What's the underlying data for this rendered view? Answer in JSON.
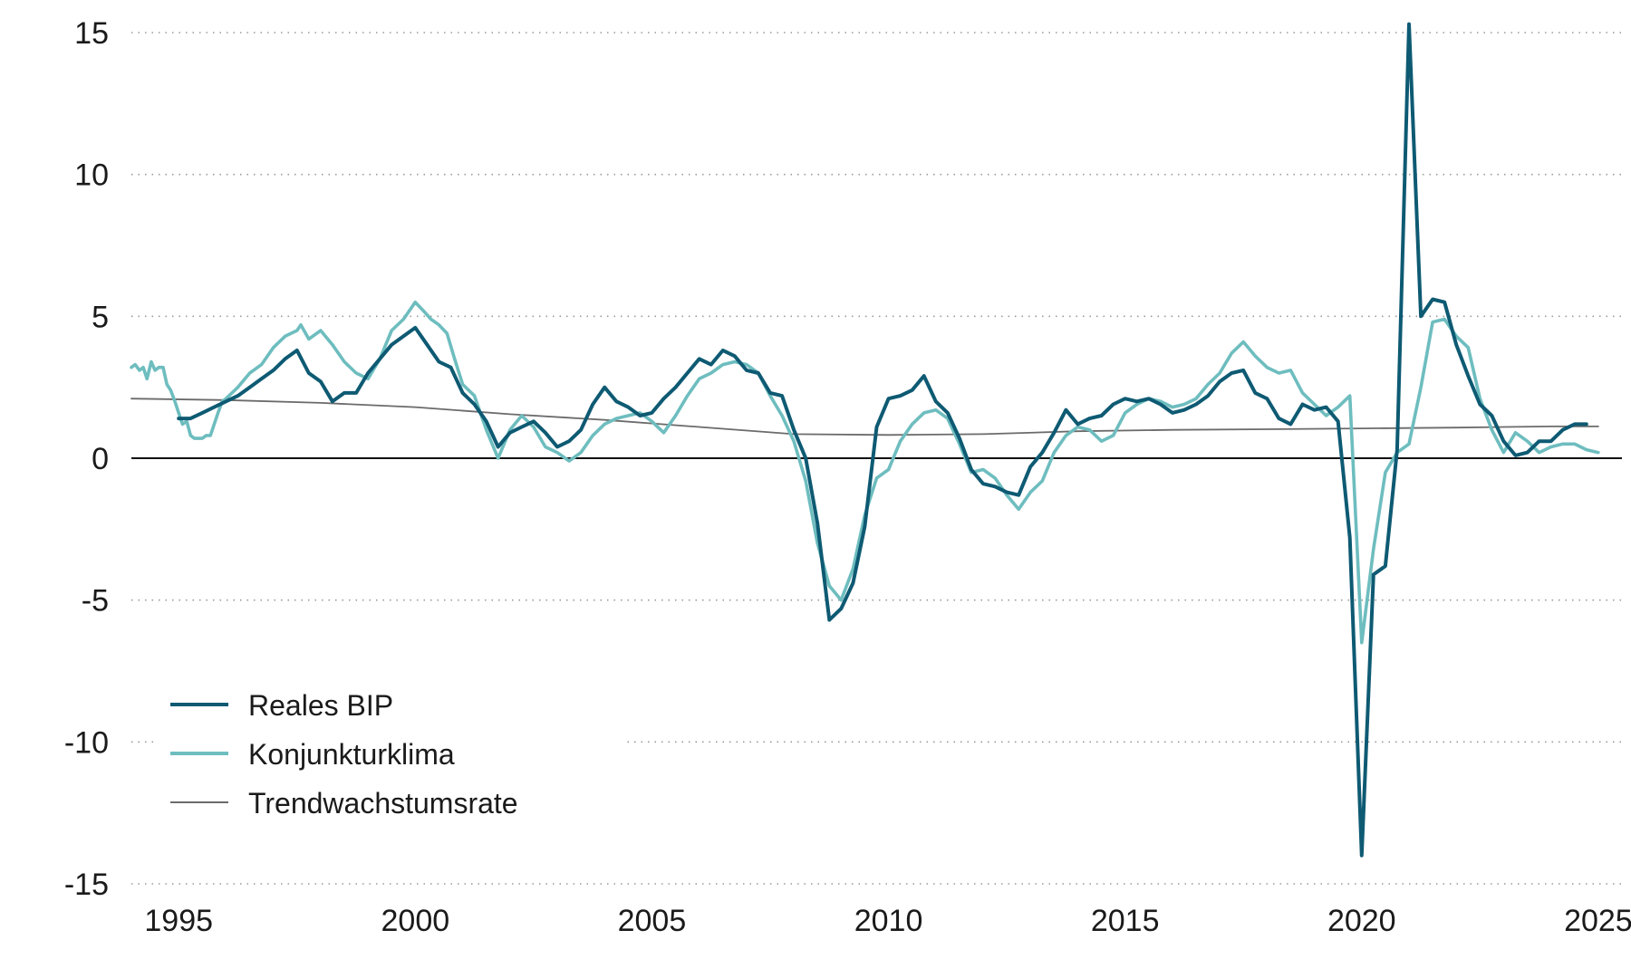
{
  "chart_data": {
    "type": "line",
    "title": "",
    "xlabel": "",
    "ylabel": "",
    "xlim": [
      1994.0,
      2025.5
    ],
    "ylim": [
      -15,
      15
    ],
    "y_ticks": [
      15,
      10,
      5,
      0,
      -5,
      -10,
      -15
    ],
    "y_tick_labels": [
      "15",
      "10",
      "5",
      "0",
      "-5",
      "-10",
      "-15"
    ],
    "x_ticks": [
      1995,
      2000,
      2005,
      2010,
      2015,
      2020,
      2025
    ],
    "x_tick_labels": [
      "1995",
      "2000",
      "2005",
      "2010",
      "2015",
      "2020",
      "2025"
    ],
    "grid": "horizontal dotted",
    "zero_line": true,
    "legend_position": "bottom-left",
    "series": [
      {
        "name": "Reales BIP",
        "color": "#0e5a73",
        "points": [
          [
            1995.0,
            1.4
          ],
          [
            1995.25,
            1.4
          ],
          [
            1995.5,
            1.6
          ],
          [
            1995.75,
            1.8
          ],
          [
            1996.0,
            2.0
          ],
          [
            1996.25,
            2.2
          ],
          [
            1996.5,
            2.5
          ],
          [
            1996.75,
            2.8
          ],
          [
            1997.0,
            3.1
          ],
          [
            1997.25,
            3.5
          ],
          [
            1997.5,
            3.8
          ],
          [
            1997.75,
            3.0
          ],
          [
            1998.0,
            2.7
          ],
          [
            1998.25,
            2.0
          ],
          [
            1998.5,
            2.3
          ],
          [
            1998.75,
            2.3
          ],
          [
            1999.0,
            3.0
          ],
          [
            1999.25,
            3.5
          ],
          [
            1999.5,
            4.0
          ],
          [
            1999.75,
            4.3
          ],
          [
            2000.0,
            4.6
          ],
          [
            2000.25,
            4.0
          ],
          [
            2000.5,
            3.4
          ],
          [
            2000.75,
            3.2
          ],
          [
            2001.0,
            2.3
          ],
          [
            2001.25,
            1.9
          ],
          [
            2001.5,
            1.3
          ],
          [
            2001.75,
            0.4
          ],
          [
            2002.0,
            0.9
          ],
          [
            2002.25,
            1.1
          ],
          [
            2002.5,
            1.3
          ],
          [
            2002.75,
            0.9
          ],
          [
            2003.0,
            0.4
          ],
          [
            2003.25,
            0.6
          ],
          [
            2003.5,
            1.0
          ],
          [
            2003.75,
            1.9
          ],
          [
            2004.0,
            2.5
          ],
          [
            2004.25,
            2.0
          ],
          [
            2004.5,
            1.8
          ],
          [
            2004.75,
            1.5
          ],
          [
            2005.0,
            1.6
          ],
          [
            2005.25,
            2.1
          ],
          [
            2005.5,
            2.5
          ],
          [
            2005.75,
            3.0
          ],
          [
            2006.0,
            3.5
          ],
          [
            2006.25,
            3.3
          ],
          [
            2006.5,
            3.8
          ],
          [
            2006.75,
            3.6
          ],
          [
            2007.0,
            3.1
          ],
          [
            2007.25,
            3.0
          ],
          [
            2007.5,
            2.3
          ],
          [
            2007.75,
            2.2
          ],
          [
            2008.0,
            1.0
          ],
          [
            2008.25,
            0.0
          ],
          [
            2008.5,
            -2.3
          ],
          [
            2008.75,
            -5.7
          ],
          [
            2009.0,
            -5.3
          ],
          [
            2009.25,
            -4.4
          ],
          [
            2009.5,
            -2.4
          ],
          [
            2009.75,
            1.1
          ],
          [
            2010.0,
            2.1
          ],
          [
            2010.25,
            2.2
          ],
          [
            2010.5,
            2.4
          ],
          [
            2010.75,
            2.9
          ],
          [
            2011.0,
            2.0
          ],
          [
            2011.25,
            1.6
          ],
          [
            2011.5,
            0.7
          ],
          [
            2011.75,
            -0.4
          ],
          [
            2012.0,
            -0.9
          ],
          [
            2012.25,
            -1.0
          ],
          [
            2012.5,
            -1.2
          ],
          [
            2012.75,
            -1.3
          ],
          [
            2013.0,
            -0.3
          ],
          [
            2013.25,
            0.2
          ],
          [
            2013.5,
            0.9
          ],
          [
            2013.75,
            1.7
          ],
          [
            2014.0,
            1.2
          ],
          [
            2014.25,
            1.4
          ],
          [
            2014.5,
            1.5
          ],
          [
            2014.75,
            1.9
          ],
          [
            2015.0,
            2.1
          ],
          [
            2015.25,
            2.0
          ],
          [
            2015.5,
            2.1
          ],
          [
            2015.75,
            1.9
          ],
          [
            2016.0,
            1.6
          ],
          [
            2016.25,
            1.7
          ],
          [
            2016.5,
            1.9
          ],
          [
            2016.75,
            2.2
          ],
          [
            2017.0,
            2.7
          ],
          [
            2017.25,
            3.0
          ],
          [
            2017.5,
            3.1
          ],
          [
            2017.75,
            2.3
          ],
          [
            2018.0,
            2.1
          ],
          [
            2018.25,
            1.4
          ],
          [
            2018.5,
            1.2
          ],
          [
            2018.75,
            1.9
          ],
          [
            2019.0,
            1.7
          ],
          [
            2019.25,
            1.8
          ],
          [
            2019.5,
            1.3
          ],
          [
            2019.75,
            -2.8
          ],
          [
            2020.0,
            -14.0
          ],
          [
            2020.25,
            -4.1
          ],
          [
            2020.5,
            -3.8
          ],
          [
            2020.75,
            0.3
          ],
          [
            2021.0,
            15.3
          ],
          [
            2021.25,
            5.0
          ],
          [
            2021.5,
            5.6
          ],
          [
            2021.75,
            5.5
          ],
          [
            2022.0,
            4.0
          ],
          [
            2022.25,
            2.9
          ],
          [
            2022.5,
            1.9
          ],
          [
            2022.75,
            1.5
          ],
          [
            2023.0,
            0.6
          ],
          [
            2023.25,
            0.1
          ],
          [
            2023.5,
            0.2
          ],
          [
            2023.75,
            0.6
          ],
          [
            2024.0,
            0.6
          ],
          [
            2024.25,
            1.0
          ],
          [
            2024.5,
            1.2
          ],
          [
            2024.75,
            1.2
          ]
        ]
      },
      {
        "name": "Konjunkturklima",
        "color": "#6ebdbf",
        "points": [
          [
            1994.0,
            3.2
          ],
          [
            1994.08,
            3.3
          ],
          [
            1994.17,
            3.1
          ],
          [
            1994.25,
            3.2
          ],
          [
            1994.33,
            2.8
          ],
          [
            1994.42,
            3.4
          ],
          [
            1994.5,
            3.1
          ],
          [
            1994.58,
            3.2
          ],
          [
            1994.67,
            3.2
          ],
          [
            1994.75,
            2.6
          ],
          [
            1994.83,
            2.4
          ],
          [
            1994.92,
            2.0
          ],
          [
            1995.0,
            1.6
          ],
          [
            1995.08,
            1.2
          ],
          [
            1995.17,
            1.3
          ],
          [
            1995.25,
            0.8
          ],
          [
            1995.33,
            0.7
          ],
          [
            1995.42,
            0.7
          ],
          [
            1995.5,
            0.7
          ],
          [
            1995.58,
            0.8
          ],
          [
            1995.67,
            0.8
          ],
          [
            1995.75,
            1.2
          ],
          [
            1995.83,
            1.6
          ],
          [
            1995.92,
            2.0
          ],
          [
            1996.0,
            2.1
          ],
          [
            1996.25,
            2.5
          ],
          [
            1996.5,
            3.0
          ],
          [
            1996.75,
            3.3
          ],
          [
            1997.0,
            3.9
          ],
          [
            1997.25,
            4.3
          ],
          [
            1997.5,
            4.5
          ],
          [
            1997.58,
            4.7
          ],
          [
            1997.75,
            4.2
          ],
          [
            1998.0,
            4.5
          ],
          [
            1998.25,
            4.0
          ],
          [
            1998.5,
            3.4
          ],
          [
            1998.75,
            3.0
          ],
          [
            1999.0,
            2.8
          ],
          [
            1999.25,
            3.5
          ],
          [
            1999.5,
            4.5
          ],
          [
            1999.75,
            4.9
          ],
          [
            2000.0,
            5.5
          ],
          [
            2000.17,
            5.2
          ],
          [
            2000.33,
            4.9
          ],
          [
            2000.5,
            4.7
          ],
          [
            2000.67,
            4.4
          ],
          [
            2000.83,
            3.5
          ],
          [
            2001.0,
            2.6
          ],
          [
            2001.25,
            2.2
          ],
          [
            2001.5,
            1.0
          ],
          [
            2001.75,
            0.0
          ],
          [
            2002.0,
            1.0
          ],
          [
            2002.25,
            1.5
          ],
          [
            2002.5,
            1.1
          ],
          [
            2002.75,
            0.4
          ],
          [
            2003.0,
            0.2
          ],
          [
            2003.25,
            -0.1
          ],
          [
            2003.5,
            0.2
          ],
          [
            2003.75,
            0.8
          ],
          [
            2004.0,
            1.2
          ],
          [
            2004.25,
            1.4
          ],
          [
            2004.5,
            1.5
          ],
          [
            2004.75,
            1.6
          ],
          [
            2005.0,
            1.3
          ],
          [
            2005.25,
            0.9
          ],
          [
            2005.5,
            1.5
          ],
          [
            2005.75,
            2.2
          ],
          [
            2006.0,
            2.8
          ],
          [
            2006.25,
            3.0
          ],
          [
            2006.5,
            3.3
          ],
          [
            2006.75,
            3.4
          ],
          [
            2007.0,
            3.3
          ],
          [
            2007.25,
            3.0
          ],
          [
            2007.5,
            2.2
          ],
          [
            2007.75,
            1.5
          ],
          [
            2008.0,
            0.6
          ],
          [
            2008.25,
            -0.8
          ],
          [
            2008.5,
            -3.0
          ],
          [
            2008.75,
            -4.5
          ],
          [
            2009.0,
            -5.0
          ],
          [
            2009.25,
            -3.9
          ],
          [
            2009.5,
            -2.0
          ],
          [
            2009.75,
            -0.7
          ],
          [
            2010.0,
            -0.4
          ],
          [
            2010.25,
            0.6
          ],
          [
            2010.5,
            1.2
          ],
          [
            2010.75,
            1.6
          ],
          [
            2011.0,
            1.7
          ],
          [
            2011.25,
            1.4
          ],
          [
            2011.5,
            0.5
          ],
          [
            2011.75,
            -0.5
          ],
          [
            2012.0,
            -0.4
          ],
          [
            2012.25,
            -0.7
          ],
          [
            2012.5,
            -1.3
          ],
          [
            2012.75,
            -1.8
          ],
          [
            2013.0,
            -1.2
          ],
          [
            2013.25,
            -0.8
          ],
          [
            2013.5,
            0.2
          ],
          [
            2013.75,
            0.8
          ],
          [
            2014.0,
            1.1
          ],
          [
            2014.25,
            1.0
          ],
          [
            2014.5,
            0.6
          ],
          [
            2014.75,
            0.8
          ],
          [
            2015.0,
            1.6
          ],
          [
            2015.25,
            1.9
          ],
          [
            2015.5,
            2.1
          ],
          [
            2015.75,
            2.0
          ],
          [
            2016.0,
            1.8
          ],
          [
            2016.25,
            1.9
          ],
          [
            2016.5,
            2.1
          ],
          [
            2016.75,
            2.6
          ],
          [
            2017.0,
            3.0
          ],
          [
            2017.25,
            3.7
          ],
          [
            2017.5,
            4.1
          ],
          [
            2017.75,
            3.6
          ],
          [
            2018.0,
            3.2
          ],
          [
            2018.25,
            3.0
          ],
          [
            2018.5,
            3.1
          ],
          [
            2018.75,
            2.3
          ],
          [
            2019.0,
            1.9
          ],
          [
            2019.25,
            1.5
          ],
          [
            2019.5,
            1.8
          ],
          [
            2019.75,
            2.2
          ],
          [
            2020.0,
            -6.5
          ],
          [
            2020.25,
            -3.2
          ],
          [
            2020.5,
            -0.5
          ],
          [
            2020.75,
            0.2
          ],
          [
            2021.0,
            0.5
          ],
          [
            2021.25,
            2.5
          ],
          [
            2021.5,
            4.8
          ],
          [
            2021.75,
            4.9
          ],
          [
            2022.0,
            4.3
          ],
          [
            2022.25,
            3.9
          ],
          [
            2022.5,
            2.1
          ],
          [
            2022.75,
            1.0
          ],
          [
            2023.0,
            0.2
          ],
          [
            2023.25,
            0.9
          ],
          [
            2023.5,
            0.6
          ],
          [
            2023.75,
            0.2
          ],
          [
            2024.0,
            0.4
          ],
          [
            2024.25,
            0.5
          ],
          [
            2024.5,
            0.5
          ],
          [
            2024.75,
            0.3
          ],
          [
            2025.0,
            0.2
          ]
        ]
      },
      {
        "name": "Trendwachstumsrate",
        "color": "#6b6b6b",
        "points": [
          [
            1994.0,
            2.1
          ],
          [
            1996.0,
            2.05
          ],
          [
            1998.0,
            1.95
          ],
          [
            2000.0,
            1.8
          ],
          [
            2002.0,
            1.55
          ],
          [
            2004.0,
            1.35
          ],
          [
            2006.0,
            1.1
          ],
          [
            2008.0,
            0.85
          ],
          [
            2010.0,
            0.82
          ],
          [
            2012.0,
            0.85
          ],
          [
            2014.0,
            0.95
          ],
          [
            2016.0,
            1.0
          ],
          [
            2018.0,
            1.02
          ],
          [
            2020.0,
            1.05
          ],
          [
            2022.0,
            1.08
          ],
          [
            2024.0,
            1.12
          ],
          [
            2025.0,
            1.12
          ]
        ]
      }
    ]
  }
}
